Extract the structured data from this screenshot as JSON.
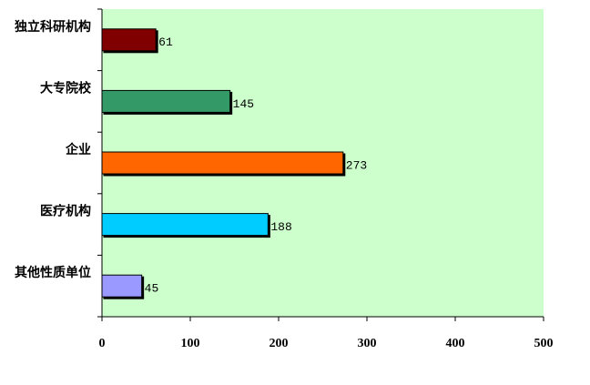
{
  "chart_data": {
    "type": "barh",
    "categories": [
      "独立科研机构",
      "大专院校",
      "企业",
      "医疗机构",
      "其他性质单位"
    ],
    "values": [
      61,
      145,
      273,
      188,
      45
    ],
    "colors": [
      "#800000",
      "#339966",
      "#ff6600",
      "#00ccff",
      "#9999ff"
    ],
    "xlim": [
      0,
      500
    ],
    "xticks": [
      0,
      100,
      200,
      300,
      400,
      500
    ],
    "plot_background": "#ccffcc"
  }
}
